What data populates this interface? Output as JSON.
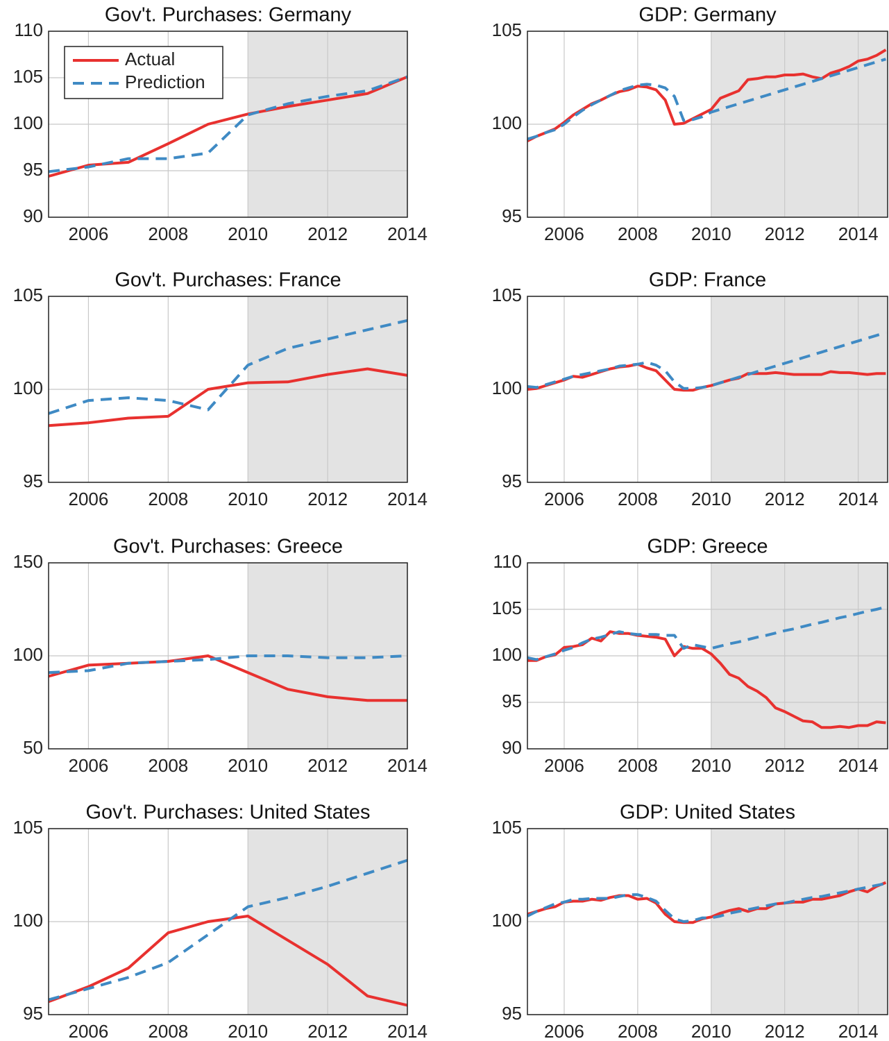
{
  "chart_data": [
    {
      "type": "line",
      "title": "Gov't. Purchases: Germany",
      "x": [
        2005,
        2006,
        2007,
        2008,
        2009,
        2010,
        2011,
        2012,
        2013,
        2014
      ],
      "series": [
        {
          "name": "Actual",
          "color": "#e8312f",
          "dashed": false,
          "values": [
            94.4,
            95.6,
            95.9,
            97.9,
            100.0,
            101.1,
            101.9,
            102.6,
            103.3,
            105.1
          ]
        },
        {
          "name": "Prediction",
          "color": "#3f8ac4",
          "dashed": true,
          "values": [
            94.9,
            95.4,
            96.3,
            96.3,
            96.9,
            101.0,
            102.2,
            103.0,
            103.6,
            105.1
          ]
        }
      ],
      "xlim": [
        2005,
        2014
      ],
      "xticks": [
        2006,
        2008,
        2010,
        2012,
        2014
      ],
      "ylim": [
        90,
        110
      ],
      "yticks": [
        90,
        95,
        100,
        105,
        110
      ],
      "grid": true,
      "shaded_xrange": [
        2010,
        2014
      ],
      "legend": "upper left"
    },
    {
      "type": "line",
      "title": "GDP: Germany",
      "x": [
        2005,
        2005.25,
        2005.5,
        2005.75,
        2006,
        2006.25,
        2006.5,
        2006.75,
        2007,
        2007.25,
        2007.5,
        2007.75,
        2008,
        2008.25,
        2008.5,
        2008.75,
        2009,
        2009.25,
        2009.5,
        2009.75,
        2010,
        2010.25,
        2010.5,
        2010.75,
        2011,
        2011.25,
        2011.5,
        2011.75,
        2012,
        2012.25,
        2012.5,
        2012.75,
        2013,
        2013.25,
        2013.5,
        2013.75,
        2014,
        2014.25,
        2014.5,
        2014.75
      ],
      "series": [
        {
          "color": "#e8312f",
          "dashed": false,
          "values": [
            99.1,
            99.35,
            99.55,
            99.75,
            100.1,
            100.5,
            100.8,
            101.1,
            101.3,
            101.55,
            101.75,
            101.85,
            102.05,
            102.0,
            101.85,
            101.3,
            100.0,
            100.05,
            100.3,
            100.55,
            100.8,
            101.4,
            101.6,
            101.8,
            102.4,
            102.45,
            102.55,
            102.55,
            102.65,
            102.65,
            102.7,
            102.55,
            102.45,
            102.75,
            102.9,
            103.1,
            103.4,
            103.5,
            103.7,
            104.0
          ]
        },
        {
          "color": "#3f8ac4",
          "dashed": true,
          "values": [
            99.2,
            99.35,
            99.55,
            99.7,
            100.0,
            100.4,
            100.75,
            101.05,
            101.3,
            101.55,
            101.8,
            101.95,
            102.1,
            102.15,
            102.1,
            101.95,
            101.5,
            100.2,
            100.25,
            100.4,
            100.65,
            100.8,
            100.95,
            101.1,
            101.25,
            101.4,
            101.55,
            101.7,
            101.85,
            102.0,
            102.15,
            102.3,
            102.45,
            102.6,
            102.75,
            102.9,
            103.05,
            103.2,
            103.35,
            103.5
          ]
        }
      ],
      "xlim": [
        2005,
        2014.8
      ],
      "xticks": [
        2006,
        2008,
        2010,
        2012,
        2014
      ],
      "ylim": [
        95,
        105
      ],
      "yticks": [
        95,
        100,
        105
      ],
      "grid": true,
      "shaded_xrange": [
        2010,
        2014.8
      ]
    },
    {
      "type": "line",
      "title": "Gov't. Purchases: France",
      "x": [
        2005,
        2006,
        2007,
        2008,
        2009,
        2010,
        2011,
        2012,
        2013,
        2014
      ],
      "series": [
        {
          "color": "#e8312f",
          "dashed": false,
          "values": [
            98.05,
            98.2,
            98.45,
            98.55,
            100.0,
            100.35,
            100.4,
            100.8,
            101.1,
            100.75
          ]
        },
        {
          "color": "#3f8ac4",
          "dashed": true,
          "values": [
            98.7,
            99.4,
            99.55,
            99.4,
            98.9,
            101.3,
            102.2,
            102.7,
            103.2,
            103.7
          ]
        }
      ],
      "xlim": [
        2005,
        2014
      ],
      "xticks": [
        2006,
        2008,
        2010,
        2012,
        2014
      ],
      "ylim": [
        95,
        105
      ],
      "yticks": [
        95,
        100,
        105
      ],
      "grid": true,
      "shaded_xrange": [
        2010,
        2014
      ]
    },
    {
      "type": "line",
      "title": "GDP: France",
      "x": [
        2005,
        2005.25,
        2005.5,
        2005.75,
        2006,
        2006.25,
        2006.5,
        2006.75,
        2007,
        2007.25,
        2007.5,
        2007.75,
        2008,
        2008.25,
        2008.5,
        2008.75,
        2009,
        2009.25,
        2009.5,
        2009.75,
        2010,
        2010.25,
        2010.5,
        2010.75,
        2011,
        2011.25,
        2011.5,
        2011.75,
        2012,
        2012.25,
        2012.5,
        2012.75,
        2013,
        2013.25,
        2013.5,
        2013.75,
        2014,
        2014.25,
        2014.5,
        2014.75
      ],
      "series": [
        {
          "color": "#e8312f",
          "dashed": false,
          "values": [
            100.0,
            100.05,
            100.2,
            100.35,
            100.5,
            100.7,
            100.65,
            100.8,
            100.95,
            101.1,
            101.2,
            101.25,
            101.35,
            101.15,
            101.0,
            100.5,
            100.0,
            99.95,
            99.95,
            100.1,
            100.2,
            100.35,
            100.5,
            100.6,
            100.85,
            100.85,
            100.85,
            100.9,
            100.85,
            100.8,
            100.8,
            100.8,
            100.8,
            100.95,
            100.9,
            100.9,
            100.85,
            100.8,
            100.85,
            100.85
          ]
        },
        {
          "color": "#3f8ac4",
          "dashed": true,
          "values": [
            100.15,
            100.1,
            100.25,
            100.4,
            100.55,
            100.7,
            100.8,
            100.9,
            101.0,
            101.1,
            101.25,
            101.3,
            101.35,
            101.45,
            101.3,
            101.0,
            100.4,
            100.05,
            100.05,
            100.1,
            100.2,
            100.35,
            100.5,
            100.65,
            100.8,
            100.95,
            101.1,
            101.25,
            101.4,
            101.55,
            101.7,
            101.85,
            102.0,
            102.15,
            102.3,
            102.45,
            102.6,
            102.75,
            102.9,
            103.05
          ]
        }
      ],
      "xlim": [
        2005,
        2014.8
      ],
      "xticks": [
        2006,
        2008,
        2010,
        2012,
        2014
      ],
      "ylim": [
        95,
        105
      ],
      "yticks": [
        95,
        100,
        105
      ],
      "grid": true,
      "shaded_xrange": [
        2010,
        2014.8
      ]
    },
    {
      "type": "line",
      "title": "Gov't. Purchases: Greece",
      "x": [
        2005,
        2006,
        2007,
        2008,
        2009,
        2010,
        2011,
        2012,
        2013,
        2014
      ],
      "series": [
        {
          "color": "#e8312f",
          "dashed": false,
          "values": [
            89,
            95,
            96,
            97,
            100,
            91,
            82,
            78,
            76,
            76
          ]
        },
        {
          "color": "#3f8ac4",
          "dashed": true,
          "values": [
            91,
            92,
            96,
            97,
            98,
            100,
            100,
            99,
            99,
            100
          ]
        }
      ],
      "xlim": [
        2005,
        2014
      ],
      "xticks": [
        2006,
        2008,
        2010,
        2012,
        2014
      ],
      "ylim": [
        50,
        150
      ],
      "yticks": [
        50,
        100,
        150
      ],
      "grid": true,
      "shaded_xrange": [
        2010,
        2014
      ]
    },
    {
      "type": "line",
      "title": "GDP: Greece",
      "x": [
        2005,
        2005.25,
        2005.5,
        2005.75,
        2006,
        2006.25,
        2006.5,
        2006.75,
        2007,
        2007.25,
        2007.5,
        2007.75,
        2008,
        2008.25,
        2008.5,
        2008.75,
        2009,
        2009.25,
        2009.5,
        2009.75,
        2010,
        2010.25,
        2010.5,
        2010.75,
        2011,
        2011.25,
        2011.5,
        2011.75,
        2012,
        2012.25,
        2012.5,
        2012.75,
        2013,
        2013.25,
        2013.5,
        2013.75,
        2014,
        2014.25,
        2014.5,
        2014.75
      ],
      "series": [
        {
          "color": "#e8312f",
          "dashed": false,
          "values": [
            99.5,
            99.5,
            99.9,
            100.1,
            100.9,
            101.0,
            101.2,
            101.9,
            101.6,
            102.6,
            102.4,
            102.4,
            102.2,
            102.1,
            102.0,
            101.8,
            100.0,
            101.0,
            100.8,
            100.8,
            100.2,
            99.2,
            98.0,
            97.6,
            96.7,
            96.2,
            95.5,
            94.4,
            94.0,
            93.5,
            93.0,
            92.9,
            92.3,
            92.3,
            92.4,
            92.3,
            92.5,
            92.5,
            92.9,
            92.8
          ]
        },
        {
          "color": "#3f8ac4",
          "dashed": true,
          "values": [
            99.8,
            99.6,
            99.9,
            100.2,
            100.6,
            100.9,
            101.4,
            101.8,
            102.0,
            102.3,
            102.6,
            102.4,
            102.3,
            102.3,
            102.3,
            102.2,
            102.2,
            100.8,
            101.2,
            101.0,
            100.8,
            101.05,
            101.3,
            101.5,
            101.75,
            102.0,
            102.2,
            102.45,
            102.7,
            102.9,
            103.15,
            103.4,
            103.6,
            103.85,
            104.1,
            104.3,
            104.55,
            104.8,
            105.0,
            105.25
          ]
        }
      ],
      "xlim": [
        2005,
        2014.8
      ],
      "xticks": [
        2006,
        2008,
        2010,
        2012,
        2014
      ],
      "ylim": [
        90,
        110
      ],
      "yticks": [
        90,
        95,
        100,
        105,
        110
      ],
      "grid": true,
      "shaded_xrange": [
        2010,
        2014.8
      ]
    },
    {
      "type": "line",
      "title": "Gov't. Purchases: United States",
      "x": [
        2005,
        2006,
        2007,
        2008,
        2009,
        2010,
        2011,
        2012,
        2013,
        2014
      ],
      "series": [
        {
          "color": "#e8312f",
          "dashed": false,
          "values": [
            95.7,
            96.5,
            97.5,
            99.4,
            100.0,
            100.3,
            99.0,
            97.7,
            96.0,
            95.5
          ]
        },
        {
          "color": "#3f8ac4",
          "dashed": true,
          "values": [
            95.8,
            96.4,
            97.0,
            97.8,
            99.3,
            100.8,
            101.3,
            101.9,
            102.6,
            103.3
          ]
        }
      ],
      "xlim": [
        2005,
        2014
      ],
      "xticks": [
        2006,
        2008,
        2010,
        2012,
        2014
      ],
      "ylim": [
        95,
        105
      ],
      "yticks": [
        95,
        100,
        105
      ],
      "grid": true,
      "shaded_xrange": [
        2010,
        2014
      ]
    },
    {
      "type": "line",
      "title": "GDP: United States",
      "x": [
        2005,
        2005.25,
        2005.5,
        2005.75,
        2006,
        2006.25,
        2006.5,
        2006.75,
        2007,
        2007.25,
        2007.5,
        2007.75,
        2008,
        2008.25,
        2008.5,
        2008.75,
        2009,
        2009.25,
        2009.5,
        2009.75,
        2010,
        2010.25,
        2010.5,
        2010.75,
        2011,
        2011.25,
        2011.5,
        2011.75,
        2012,
        2012.25,
        2012.5,
        2012.75,
        2013,
        2013.25,
        2013.5,
        2013.75,
        2014,
        2014.25,
        2014.5,
        2014.75
      ],
      "series": [
        {
          "color": "#e8312f",
          "dashed": false,
          "values": [
            100.4,
            100.55,
            100.7,
            100.8,
            101.05,
            101.1,
            101.1,
            101.2,
            101.15,
            101.3,
            101.4,
            101.4,
            101.2,
            101.25,
            101.0,
            100.4,
            100.0,
            99.95,
            99.95,
            100.15,
            100.25,
            100.45,
            100.6,
            100.7,
            100.55,
            100.7,
            100.7,
            100.95,
            101.0,
            101.05,
            101.05,
            101.2,
            101.2,
            101.3,
            101.4,
            101.6,
            101.75,
            101.6,
            101.9,
            102.1
          ]
        },
        {
          "color": "#3f8ac4",
          "dashed": true,
          "values": [
            100.3,
            100.55,
            100.75,
            100.95,
            101.05,
            101.2,
            101.2,
            101.25,
            101.25,
            101.25,
            101.35,
            101.45,
            101.45,
            101.3,
            101.1,
            100.6,
            100.15,
            100.0,
            100.05,
            100.2,
            100.2,
            100.3,
            100.45,
            100.55,
            100.65,
            100.75,
            100.85,
            100.95,
            101.0,
            101.1,
            101.2,
            101.3,
            101.35,
            101.45,
            101.55,
            101.65,
            101.75,
            101.85,
            101.95,
            102.05
          ]
        }
      ],
      "xlim": [
        2005,
        2014.8
      ],
      "xticks": [
        2006,
        2008,
        2010,
        2012,
        2014
      ],
      "ylim": [
        95,
        105
      ],
      "yticks": [
        95,
        100,
        105
      ],
      "grid": true,
      "shaded_xrange": [
        2010,
        2014.8
      ]
    }
  ]
}
